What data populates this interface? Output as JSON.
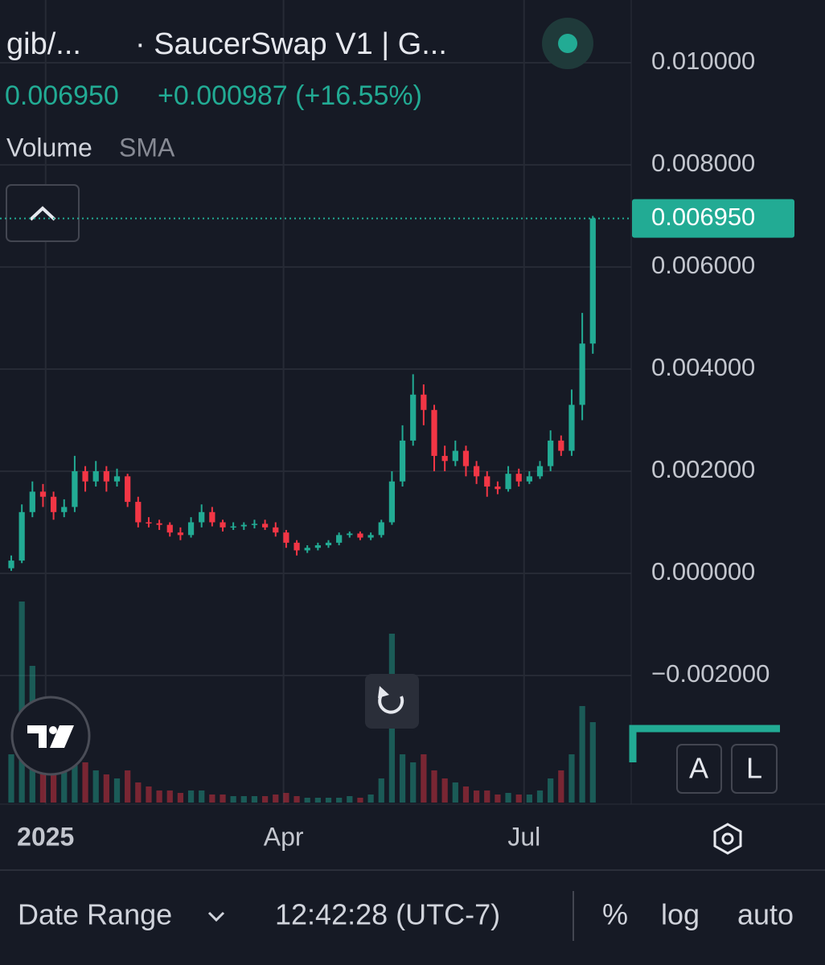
{
  "chart_data": {
    "type": "candlestick",
    "symbol": "gib/...",
    "exchange": "· SaucerSwap V1 | G...",
    "price": "0.006950",
    "change": "+0.000987 (+16.55%)",
    "indicator": "Volume",
    "indicator_detail": "SMA",
    "up_color": "#22ab94",
    "down_color": "#f23645",
    "open": [
      0.0001,
      0.00025,
      0.0012,
      0.0016,
      0.0015,
      0.0012,
      0.0013,
      0.002,
      0.0018,
      0.002,
      0.0018,
      0.0019,
      0.0014,
      0.001,
      0.00098,
      0.00095,
      0.0008,
      0.00075,
      0.001,
      0.0012,
      0.001,
      0.0009,
      0.00092,
      0.00095,
      0.00097,
      0.0009,
      0.0008,
      0.0006,
      0.00045,
      0.0005,
      0.00055,
      0.0006,
      0.00075,
      0.00078,
      0.0007,
      0.00075,
      0.001,
      0.0018,
      0.0026,
      0.0035,
      0.0032,
      0.0023,
      0.0022,
      0.0024,
      0.0021,
      0.0019,
      0.0017,
      0.00165,
      0.00195,
      0.0018,
      0.0019,
      0.0021,
      0.0026,
      0.0024,
      0.0033,
      0.0045
    ],
    "high": [
      0.00035,
      0.00135,
      0.0018,
      0.00175,
      0.0016,
      0.00145,
      0.0023,
      0.0021,
      0.0022,
      0.0021,
      0.00205,
      0.00195,
      0.0015,
      0.0011,
      0.00105,
      0.001,
      0.0009,
      0.0011,
      0.00135,
      0.0013,
      0.00105,
      0.001,
      0.001,
      0.00105,
      0.00105,
      0.001,
      0.00085,
      0.00065,
      0.00055,
      0.0006,
      0.00065,
      0.0008,
      0.00082,
      0.00082,
      0.0008,
      0.00105,
      0.002,
      0.0029,
      0.0039,
      0.0037,
      0.0033,
      0.0025,
      0.0026,
      0.0025,
      0.0022,
      0.002,
      0.0018,
      0.0021,
      0.00205,
      0.002,
      0.0022,
      0.0028,
      0.0027,
      0.0036,
      0.0051,
      0.007
    ],
    "low": [
      5e-05,
      0.0002,
      0.0011,
      0.0013,
      0.00105,
      0.0011,
      0.0012,
      0.0016,
      0.0017,
      0.0016,
      0.0017,
      0.0013,
      0.0009,
      0.0009,
      0.00085,
      0.00072,
      0.00065,
      0.0007,
      0.0009,
      0.00092,
      0.00082,
      0.00085,
      0.00085,
      0.00088,
      0.00085,
      0.00072,
      0.0005,
      0.00035,
      0.0004,
      0.00045,
      0.0005,
      0.00055,
      0.0007,
      0.00065,
      0.00065,
      0.0007,
      0.00095,
      0.0017,
      0.0025,
      0.0029,
      0.002,
      0.002,
      0.0021,
      0.0019,
      0.00175,
      0.0015,
      0.00155,
      0.0016,
      0.0017,
      0.00175,
      0.00185,
      0.002,
      0.0023,
      0.0023,
      0.003,
      0.0043
    ],
    "close": [
      0.00025,
      0.0012,
      0.0016,
      0.0015,
      0.0012,
      0.0013,
      0.002,
      0.0018,
      0.002,
      0.0018,
      0.0019,
      0.0014,
      0.001,
      0.00098,
      0.00095,
      0.0008,
      0.00075,
      0.001,
      0.0012,
      0.001,
      0.0009,
      0.00092,
      0.00095,
      0.00097,
      0.0009,
      0.0008,
      0.0006,
      0.00045,
      0.0005,
      0.00055,
      0.0006,
      0.00075,
      0.00078,
      0.0007,
      0.00075,
      0.001,
      0.0018,
      0.0026,
      0.0035,
      0.0032,
      0.0023,
      0.0022,
      0.0024,
      0.0021,
      0.0019,
      0.0017,
      0.00165,
      0.00195,
      0.0018,
      0.0019,
      0.0021,
      0.0026,
      0.0024,
      0.0033,
      0.0045,
      0.00695
    ],
    "volume": [
      60,
      250,
      170,
      90,
      60,
      50,
      70,
      50,
      40,
      35,
      30,
      40,
      25,
      20,
      15,
      15,
      12,
      15,
      15,
      10,
      10,
      8,
      8,
      8,
      8,
      10,
      12,
      8,
      6,
      6,
      6,
      6,
      8,
      6,
      10,
      30,
      210,
      60,
      50,
      60,
      40,
      30,
      25,
      20,
      15,
      15,
      10,
      12,
      10,
      10,
      15,
      30,
      40,
      60,
      120,
      100
    ],
    "xlim": [
      -1.065,
      58.63
    ],
    "xticks": [
      {
        "value": 3.25,
        "label": "2025"
      },
      {
        "value": 25.75,
        "label": "Apr"
      },
      {
        "value": 48.5,
        "label": "Jul"
      }
    ],
    "ylim": [
      -0.00452,
      0.011228
    ],
    "yticks": [
      {
        "value": -0.002,
        "label": "−0.002000"
      },
      {
        "value": 0,
        "label": "0.000000"
      },
      {
        "value": 0.002,
        "label": "0.002000"
      },
      {
        "value": 0.004,
        "label": "0.004000"
      },
      {
        "value": 0.006,
        "label": "0.006000"
      },
      {
        "value": 0.008,
        "label": "0.008000"
      },
      {
        "value": 0.01,
        "label": "0.010000"
      }
    ],
    "last_price": {
      "value": 0.00695,
      "label": "0.006950"
    },
    "grid": true
  },
  "scale_buttons": [
    "A",
    "L"
  ],
  "toolbar": {
    "date_range": "Date Range",
    "time": "12:42:28 (UTC-7)",
    "percent": "%",
    "log": "log",
    "auto": "auto"
  }
}
